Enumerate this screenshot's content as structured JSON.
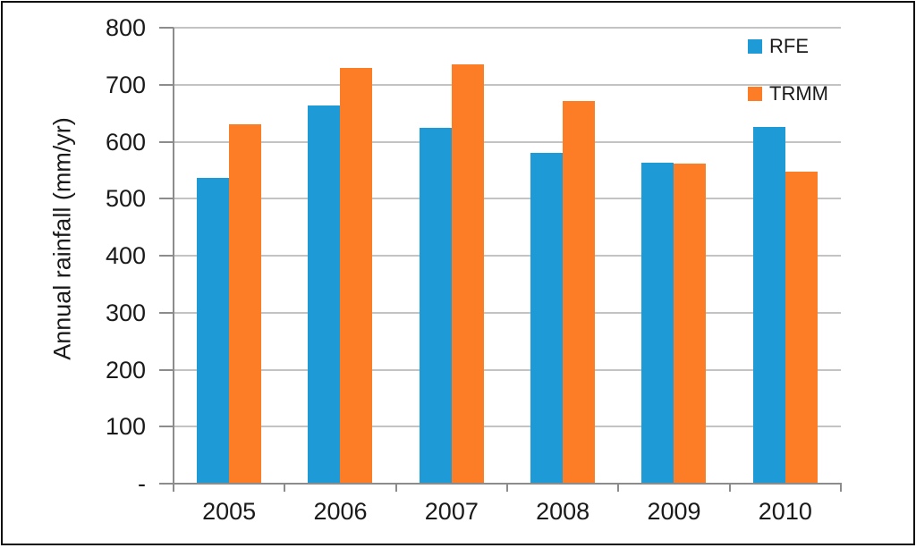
{
  "chart_data": {
    "type": "bar",
    "title": "",
    "xlabel": "",
    "ylabel": "Annual rainfall (mm/yr)",
    "categories": [
      "2005",
      "2006",
      "2007",
      "2008",
      "2009",
      "2010"
    ],
    "series": [
      {
        "name": "RFE",
        "color": "#1e9ad6",
        "values": [
          537,
          663,
          625,
          580,
          563,
          626
        ]
      },
      {
        "name": "TRMM",
        "color": "#fd7d27",
        "values": [
          631,
          730,
          736,
          671,
          561,
          548
        ]
      }
    ],
    "ylim": [
      0,
      800
    ],
    "ytick_step": 100,
    "yticks": [
      {
        "value": 800,
        "label": "800"
      },
      {
        "value": 700,
        "label": "700"
      },
      {
        "value": 600,
        "label": "600"
      },
      {
        "value": 500,
        "label": "500"
      },
      {
        "value": 400,
        "label": "400"
      },
      {
        "value": 300,
        "label": "300"
      },
      {
        "value": 200,
        "label": "200"
      },
      {
        "value": 100,
        "label": "100"
      },
      {
        "value": 0,
        "label": "-"
      }
    ],
    "grid": "horizontal",
    "legend_position": "top-right"
  },
  "colors": {
    "background": "#ffffff",
    "frame": "#0d0d0d",
    "gridline": "#c3c3c3",
    "axis": "#8c8c8c",
    "text": "#1a1a1a",
    "rfe": "#1e9ad6",
    "trmm": "#fd7d27"
  }
}
